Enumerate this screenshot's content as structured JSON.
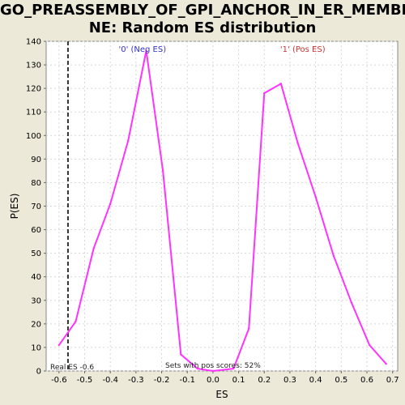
{
  "chart_data": {
    "type": "line",
    "title_line1": "GO_PREASSEMBLY_OF_GPI_ANCHOR_IN_ER_MEMBRA",
    "title_line2": "NE: Random ES distribution",
    "xlabel": "ES",
    "ylabel": "P(ES)",
    "xlim": [
      -0.65,
      0.72
    ],
    "ylim": [
      0,
      140
    ],
    "x_ticks": [
      -0.6,
      -0.5,
      -0.4,
      -0.3,
      -0.2,
      -0.1,
      0.0,
      0.1,
      0.2,
      0.3,
      0.4,
      0.5,
      0.6,
      0.7
    ],
    "x_tick_labels": [
      "-0.6",
      "-0.5",
      "-0.4",
      "-0.3",
      "-0.2",
      "-0.1",
      "0.0",
      "0.1",
      "0.2",
      "0.3",
      "0.4",
      "0.5",
      "0.6",
      "0.7"
    ],
    "y_ticks": [
      0,
      10,
      20,
      30,
      40,
      50,
      60,
      70,
      80,
      90,
      100,
      110,
      120,
      130,
      140
    ],
    "grid": true,
    "series": [
      {
        "color": "#ff33ff",
        "x": [
          -0.6,
          -0.535,
          -0.465,
          -0.4,
          -0.33,
          -0.26,
          -0.195,
          -0.125,
          -0.06,
          0.0,
          0.08,
          0.14,
          0.2,
          0.265,
          0.33,
          0.4,
          0.47,
          0.54,
          0.61,
          0.675
        ],
        "y": [
          11,
          21,
          52,
          71,
          98,
          136,
          85,
          7,
          1,
          0,
          1,
          18,
          118,
          122,
          97,
          74,
          49,
          29,
          11,
          3
        ]
      }
    ],
    "annotations": {
      "neg_label": "'0' (Neg ES)",
      "neg_color": "#3333cc",
      "pos_label": "'1' (Pos ES)",
      "pos_color": "#cc3333",
      "real_es_label": "Real ES -0.6",
      "real_es_value": -0.565,
      "sets_label": "Sets with pos scores: 52%"
    }
  }
}
